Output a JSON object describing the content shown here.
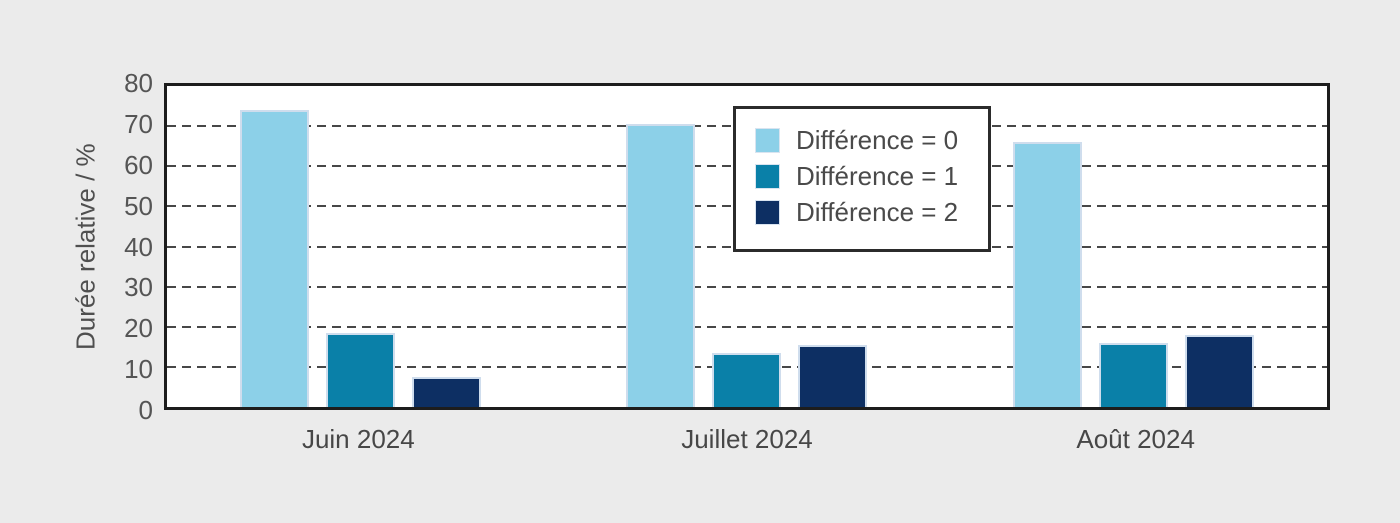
{
  "chart_data": {
    "type": "bar",
    "title": "",
    "ylabel": "Durée relative / %",
    "xlabel": "",
    "ylim": [
      0,
      80
    ],
    "yticks": [
      0,
      10,
      20,
      30,
      40,
      50,
      60,
      70,
      80
    ],
    "grid": "horizontal dashed",
    "legend_position": "inside upper center-right",
    "categories": [
      "Juin 2024",
      "Juillet 2024",
      "Août 2024"
    ],
    "series": [
      {
        "name": "Différence = 0",
        "color": "#8cd0e8",
        "values": [
          74,
          70.5,
          66
        ]
      },
      {
        "name": "Différence = 1",
        "color": "#0a80a8",
        "values": [
          18.5,
          13.5,
          16
        ]
      },
      {
        "name": "Différence = 2",
        "color": "#0d2f63",
        "values": [
          7.5,
          15.5,
          18
        ]
      }
    ]
  },
  "colors": {
    "background": "#ebebeb",
    "plot_background": "#ffffff",
    "frame": "#1d1d1d",
    "gridline": "#474747",
    "text": "#4a4a4a",
    "bar_edge": "#cfdded"
  }
}
